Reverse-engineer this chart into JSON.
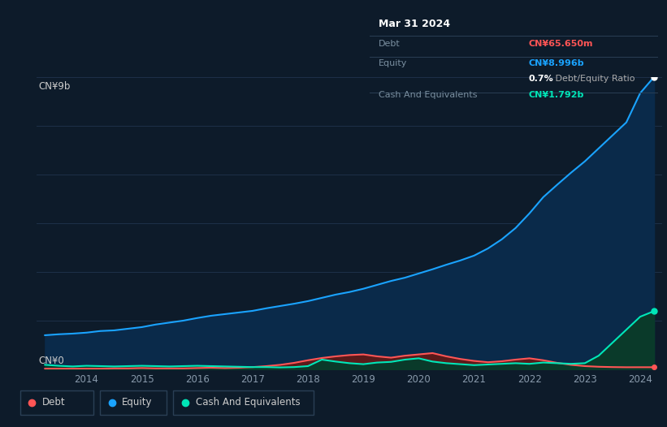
{
  "bg_color": "#0d1b2a",
  "plot_bg_color": "#0d1b2a",
  "grid_color": "#1e3048",
  "ylabel_top": "CN¥9b",
  "ylabel_bottom": "CN¥0",
  "equity_color": "#1aa3ff",
  "equity_fill": "#0a2a4a",
  "debt_color": "#ff5555",
  "debt_fill": "#5a1a1a",
  "cash_color": "#00e6b8",
  "cash_fill": "#0a3a2a",
  "legend_labels": [
    "Debt",
    "Equity",
    "Cash And Equivalents"
  ],
  "tooltip_date": "Mar 31 2024",
  "tooltip_debt_label": "Debt",
  "tooltip_debt_value": "CN¥65.650m",
  "tooltip_equity_label": "Equity",
  "tooltip_equity_value": "CN¥8.996b",
  "tooltip_ratio_bold": "0.7%",
  "tooltip_ratio_normal": " Debt/Equity Ratio",
  "tooltip_cash_label": "Cash And Equivalents",
  "tooltip_cash_value": "CN¥1.792b",
  "equity_x": [
    2013.25,
    2013.5,
    2013.75,
    2014.0,
    2014.25,
    2014.5,
    2014.75,
    2015.0,
    2015.25,
    2015.5,
    2015.75,
    2016.0,
    2016.25,
    2016.5,
    2016.75,
    2017.0,
    2017.25,
    2017.5,
    2017.75,
    2018.0,
    2018.25,
    2018.5,
    2018.75,
    2019.0,
    2019.25,
    2019.5,
    2019.75,
    2020.0,
    2020.25,
    2020.5,
    2020.75,
    2021.0,
    2021.25,
    2021.5,
    2021.75,
    2022.0,
    2022.25,
    2022.5,
    2022.75,
    2023.0,
    2023.25,
    2023.5,
    2023.75,
    2024.0,
    2024.25
  ],
  "equity_y": [
    1.05,
    1.08,
    1.1,
    1.13,
    1.18,
    1.2,
    1.25,
    1.3,
    1.38,
    1.44,
    1.5,
    1.58,
    1.65,
    1.7,
    1.75,
    1.8,
    1.88,
    1.95,
    2.02,
    2.1,
    2.2,
    2.3,
    2.38,
    2.48,
    2.6,
    2.72,
    2.82,
    2.95,
    3.08,
    3.22,
    3.35,
    3.5,
    3.72,
    4.0,
    4.35,
    4.8,
    5.3,
    5.68,
    6.05,
    6.4,
    6.8,
    7.2,
    7.6,
    8.5,
    8.996
  ],
  "debt_x": [
    2013.25,
    2013.5,
    2013.75,
    2014.0,
    2014.25,
    2014.5,
    2014.75,
    2015.0,
    2015.25,
    2015.5,
    2015.75,
    2016.0,
    2016.25,
    2016.5,
    2016.75,
    2017.0,
    2017.25,
    2017.5,
    2017.75,
    2018.0,
    2018.25,
    2018.5,
    2018.75,
    2019.0,
    2019.25,
    2019.5,
    2019.75,
    2020.0,
    2020.25,
    2020.5,
    2020.75,
    2021.0,
    2021.25,
    2021.5,
    2021.75,
    2022.0,
    2022.25,
    2022.5,
    2022.75,
    2023.0,
    2023.25,
    2023.5,
    2023.75,
    2024.0,
    2024.25
  ],
  "debt_y": [
    0.02,
    0.02,
    0.02,
    0.02,
    0.02,
    0.03,
    0.03,
    0.04,
    0.03,
    0.03,
    0.03,
    0.04,
    0.05,
    0.04,
    0.05,
    0.07,
    0.1,
    0.14,
    0.2,
    0.28,
    0.35,
    0.4,
    0.44,
    0.46,
    0.4,
    0.36,
    0.42,
    0.46,
    0.5,
    0.4,
    0.32,
    0.26,
    0.22,
    0.25,
    0.3,
    0.34,
    0.28,
    0.2,
    0.14,
    0.1,
    0.08,
    0.07,
    0.065,
    0.0656,
    0.0656
  ],
  "cash_x": [
    2013.25,
    2013.5,
    2013.75,
    2014.0,
    2014.25,
    2014.5,
    2014.75,
    2015.0,
    2015.25,
    2015.5,
    2015.75,
    2016.0,
    2016.25,
    2016.5,
    2016.75,
    2017.0,
    2017.25,
    2017.5,
    2017.75,
    2018.0,
    2018.25,
    2018.5,
    2018.75,
    2019.0,
    2019.25,
    2019.5,
    2019.75,
    2020.0,
    2020.25,
    2020.5,
    2020.75,
    2021.0,
    2021.25,
    2021.5,
    2021.75,
    2022.0,
    2022.25,
    2022.5,
    2022.75,
    2023.0,
    2023.25,
    2023.5,
    2023.75,
    2024.0,
    2024.25
  ],
  "cash_y": [
    0.14,
    0.11,
    0.09,
    0.11,
    0.1,
    0.09,
    0.1,
    0.11,
    0.1,
    0.09,
    0.1,
    0.11,
    0.1,
    0.09,
    0.08,
    0.07,
    0.07,
    0.06,
    0.07,
    0.1,
    0.3,
    0.24,
    0.19,
    0.16,
    0.21,
    0.23,
    0.3,
    0.34,
    0.24,
    0.19,
    0.16,
    0.13,
    0.15,
    0.17,
    0.19,
    0.17,
    0.21,
    0.19,
    0.17,
    0.19,
    0.42,
    0.82,
    1.22,
    1.62,
    1.792
  ],
  "ylim": [
    0.0,
    9.0
  ],
  "xlim": [
    2013.1,
    2024.4
  ],
  "xtick_positions": [
    2014,
    2015,
    2016,
    2017,
    2018,
    2019,
    2020,
    2021,
    2022,
    2023,
    2024
  ],
  "grid_y_positions": [
    0,
    1.5,
    3.0,
    4.5,
    6.0,
    7.5,
    9.0
  ]
}
